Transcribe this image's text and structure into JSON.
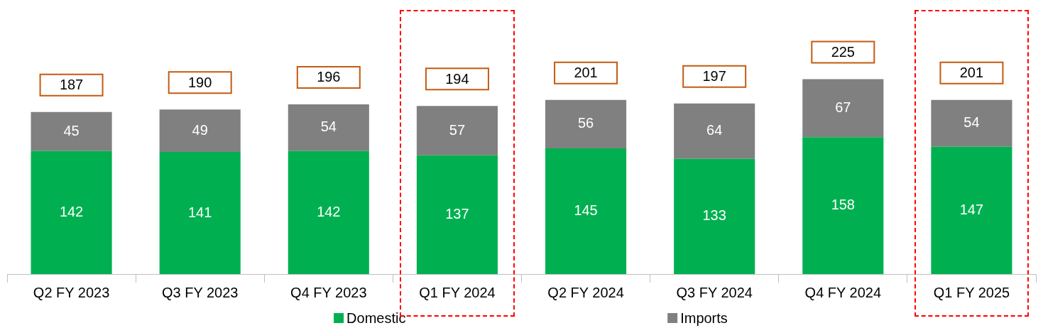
{
  "chart_data": {
    "type": "bar",
    "stacked": true,
    "categories": [
      "Q2 FY 2023",
      "Q3 FY 2023",
      "Q4 FY 2023",
      "Q1 FY 2024",
      "Q2 FY 2024",
      "Q3 FY 2024",
      "Q4 FY 2024",
      "Q1 FY 2025"
    ],
    "series": [
      {
        "name": "Domestic",
        "color": "#00b050",
        "values": [
          142,
          141,
          142,
          137,
          145,
          133,
          158,
          147
        ]
      },
      {
        "name": "Imports",
        "color": "#808080",
        "values": [
          45,
          49,
          54,
          57,
          56,
          64,
          67,
          54
        ]
      }
    ],
    "data_labels": true,
    "totals": [
      "187",
      "190",
      "196",
      "194",
      "201",
      "197",
      "225",
      "201"
    ],
    "legend": "bottom",
    "grid": false
  }
}
